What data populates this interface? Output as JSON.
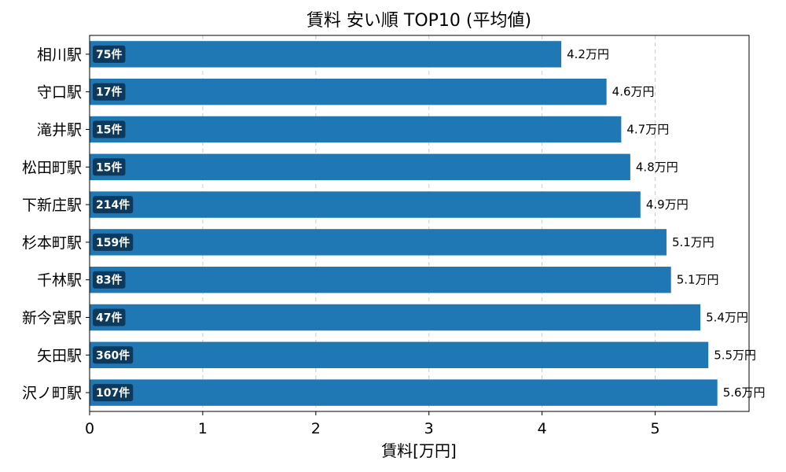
{
  "chart_data": {
    "type": "bar",
    "orientation": "horizontal",
    "title": "賃料 安い順 TOP10 (平均値)",
    "xlabel": "賃料[万円]",
    "ylabel": "",
    "xlim": [
      0,
      5.83
    ],
    "xticks": [
      "0",
      "1",
      "2",
      "3",
      "4",
      "5"
    ],
    "grid": "x-dashed",
    "categories": [
      "相川駅",
      "守口駅",
      "滝井駅",
      "松田町駅",
      "下新庄駅",
      "杉本町駅",
      "千林駅",
      "新今宮駅",
      "矢田駅",
      "沢ノ町駅"
    ],
    "values": [
      4.17,
      4.57,
      4.7,
      4.78,
      4.87,
      5.1,
      5.14,
      5.4,
      5.47,
      5.55
    ],
    "value_labels": [
      "4.2万円",
      "4.6万円",
      "4.7万円",
      "4.8万円",
      "4.9万円",
      "5.1万円",
      "5.1万円",
      "5.4万円",
      "5.5万円",
      "5.6万円"
    ],
    "count_labels": [
      "75件",
      "17件",
      "15件",
      "15件",
      "214件",
      "159件",
      "83件",
      "47件",
      "360件",
      "107件"
    ],
    "colors": {
      "bar": "#1f77b4",
      "badge": "#0d3a5c",
      "grid": "#cccccc",
      "axis": "#000000"
    }
  }
}
